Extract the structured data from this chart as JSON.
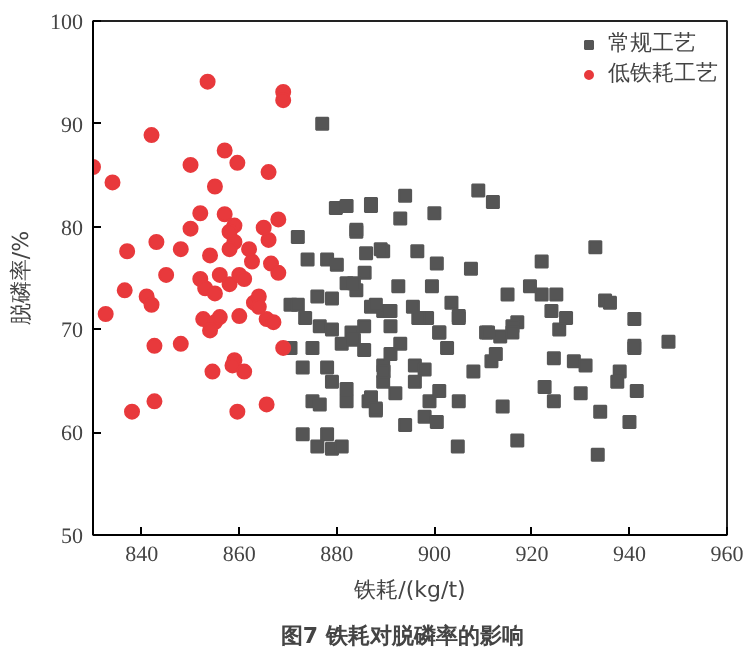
{
  "chart_data": {
    "type": "scatter",
    "title": "图7   铁耗对脱磷率的影响",
    "xlabel": "铁耗/(kg/t)",
    "ylabel": "脱磷率/%",
    "xlim": [
      830,
      960
    ],
    "ylim": [
      50,
      100
    ],
    "xticks": [
      840,
      860,
      880,
      900,
      920,
      940,
      960
    ],
    "yticks": [
      50,
      60,
      70,
      80,
      90,
      100
    ],
    "grid": false,
    "legend": "top right",
    "series": [
      {
        "name": "常规工艺",
        "color": "#555555",
        "marker": "square",
        "x": [
          877,
          872,
          879.8,
          882,
          887,
          884,
          878,
          874,
          880,
          886,
          889.5,
          870.5,
          872,
          876,
          879,
          882,
          884,
          887,
          889.5,
          873.5,
          876.5,
          879,
          883,
          885.6,
          870.5,
          875,
          881,
          873,
          878,
          879,
          882,
          875,
          876.5,
          882,
          886.5,
          888,
          873,
          878,
          876,
          879,
          881,
          883.5,
          885.6,
          889.5,
          889.5,
          909,
          912,
          894,
          900,
          893,
          887,
          884,
          889,
          896.5,
          900.5,
          907.5,
          922,
          933,
          885.7,
          883.5,
          892.6,
          899.5,
          903.5,
          915,
          919.6,
          922,
          925,
          935,
          936,
          941,
          948,
          941,
          888,
          891,
          895.6,
          898.5,
          901,
          905,
          910.6,
          913.5,
          917,
          924,
          927,
          925.6,
          891,
          896.7,
          901,
          905,
          911,
          916,
          924.5,
          928.6,
          931,
          941,
          938,
          937.5,
          941.5,
          930,
          922.6,
          924.5,
          934,
          940,
          933.5,
          917,
          904.8,
          894,
          898,
          900.5,
          899,
          887,
          888,
          892,
          896,
          901,
          905,
          911.7,
          912.6,
          914,
          908,
          889.6,
          896,
          898,
          916,
          902.6,
          891,
          893
        ],
        "values": [
          90,
          79,
          81.8,
          82,
          82,
          79.5,
          76.8,
          76.8,
          76.3,
          77.4,
          77.6,
          72.4,
          72.4,
          73.2,
          73,
          74.5,
          73.8,
          72.2,
          71.8,
          71.1,
          70.3,
          70,
          69.7,
          70.3,
          68.2,
          68.2,
          68.6,
          66.3,
          66.3,
          64.9,
          64.2,
          63,
          62.7,
          63,
          63,
          62.1,
          59.8,
          59.8,
          58.6,
          58.4,
          58.6,
          69,
          68,
          66.5,
          64.9,
          83.5,
          82.4,
          83,
          81.3,
          80.8,
          82.2,
          79.7,
          77.8,
          77.6,
          76.4,
          75.9,
          76.6,
          78,
          75.5,
          74.5,
          74.2,
          74.2,
          72.6,
          73.4,
          74.2,
          73.4,
          73.4,
          72.8,
          72.6,
          71,
          68.8,
          68.4,
          72.4,
          71.8,
          72.2,
          71.1,
          69.7,
          71.3,
          69.7,
          69.3,
          70.7,
          71.8,
          71.1,
          70,
          70.3,
          71.1,
          69.7,
          71.1,
          69.7,
          70.3,
          67.2,
          66.9,
          66.5,
          68.2,
          65.9,
          64.9,
          64,
          63.8,
          64.4,
          63,
          62,
          61,
          57.8,
          59.2,
          58.6,
          60.7,
          61.5,
          61,
          63,
          63.4,
          62.3,
          63.8,
          64.9,
          64,
          63,
          66.9,
          67.6,
          62.5,
          65.9,
          65.9,
          66.5,
          66.1,
          69.7,
          68.2,
          67.6,
          68.6
        ]
      },
      {
        "name": "低铁耗工艺",
        "color": "#e8393c",
        "marker": "circle",
        "x": [
          830,
          834,
          842,
          853.5,
          869,
          869,
          850,
          857,
          859.6,
          855,
          866,
          837,
          843,
          848,
          850,
          852,
          857,
          859,
          858,
          854,
          862,
          862.6,
          866,
          865,
          868,
          866.5,
          868,
          836.5,
          845,
          841,
          842,
          852,
          853,
          855,
          856,
          858,
          860,
          861,
          863,
          864,
          864,
          832.6,
          852.6,
          855,
          856,
          860,
          854,
          865.6,
          867,
          842.6,
          848,
          869,
          854.5,
          859,
          858.6,
          861,
          838,
          842.6,
          859.6,
          865.6,
          859,
          858
        ],
        "values": [
          85.8,
          84.3,
          88.9,
          94.1,
          93.1,
          92.3,
          86,
          87.4,
          86.2,
          83.9,
          85.3,
          77.6,
          78.5,
          77.8,
          79.8,
          81.3,
          81.2,
          78.5,
          77.8,
          77.2,
          77.8,
          76.6,
          78.7,
          79.9,
          80.7,
          76.4,
          75.5,
          73.8,
          75.3,
          73.2,
          72.4,
          74.9,
          74,
          73.5,
          75.3,
          74.4,
          75.3,
          74.9,
          72.6,
          73.2,
          72.2,
          71.5,
          71,
          70.7,
          71.2,
          71.3,
          69.9,
          71,
          70.7,
          68.4,
          68.6,
          68.2,
          65.9,
          67,
          66.5,
          65.9,
          62,
          63,
          62,
          62.7,
          80.1,
          79.5
        ]
      }
    ]
  }
}
